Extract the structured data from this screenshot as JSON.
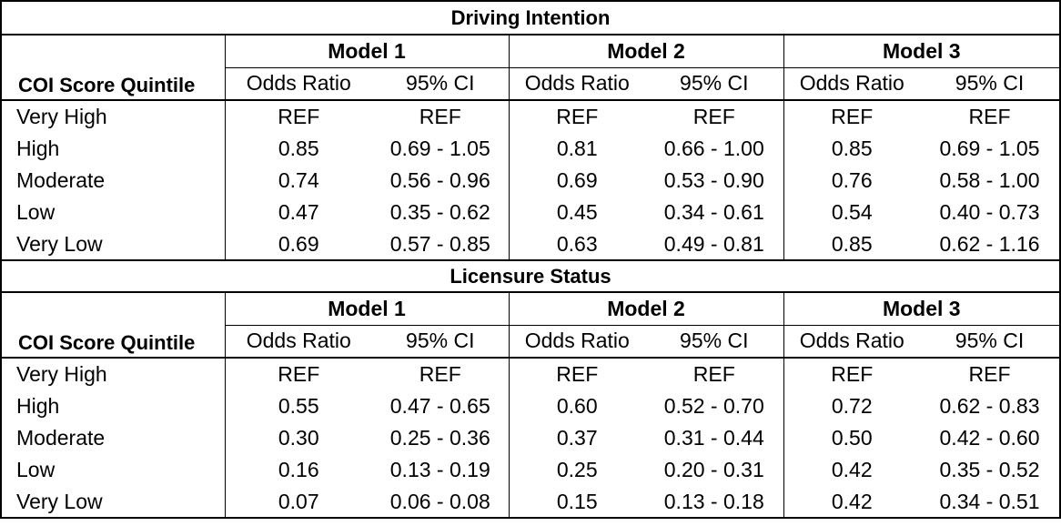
{
  "sections": [
    {
      "title": "Driving Intention",
      "models": [
        "Model 1",
        "Model 2",
        "Model 3"
      ],
      "row_header": "COI Score Quintile",
      "col_labels": [
        "Odds Ratio",
        "95% CI"
      ],
      "rows": [
        {
          "label": "Very High",
          "vals": [
            "REF",
            "REF",
            "REF",
            "REF",
            "REF",
            "REF"
          ]
        },
        {
          "label": "High",
          "vals": [
            "0.85",
            "0.69 - 1.05",
            "0.81",
            "0.66 - 1.00",
            "0.85",
            "0.69 - 1.05"
          ]
        },
        {
          "label": "Moderate",
          "vals": [
            "0.74",
            "0.56 - 0.96",
            "0.69",
            "0.53 - 0.90",
            "0.76",
            "0.58 - 1.00"
          ]
        },
        {
          "label": "Low",
          "vals": [
            "0.47",
            "0.35 - 0.62",
            "0.45",
            "0.34 - 0.61",
            "0.54",
            "0.40 - 0.73"
          ]
        },
        {
          "label": "Very Low",
          "vals": [
            "0.69",
            "0.57 - 0.85",
            "0.63",
            "0.49 - 0.81",
            "0.85",
            "0.62 - 1.16"
          ]
        }
      ]
    },
    {
      "title": "Licensure Status",
      "models": [
        "Model 1",
        "Model 2",
        "Model 3"
      ],
      "row_header": "COI Score Quintile",
      "col_labels": [
        "Odds Ratio",
        "95% CI"
      ],
      "rows": [
        {
          "label": "Very High",
          "vals": [
            "REF",
            "REF",
            "REF",
            "REF",
            "REF",
            "REF"
          ]
        },
        {
          "label": "High",
          "vals": [
            "0.55",
            "0.47 - 0.65",
            "0.60",
            "0.52 - 0.70",
            "0.72",
            "0.62 - 0.83"
          ]
        },
        {
          "label": "Moderate",
          "vals": [
            "0.30",
            "0.25 - 0.36",
            "0.37",
            "0.31 - 0.44",
            "0.50",
            "0.42 - 0.60"
          ]
        },
        {
          "label": "Low",
          "vals": [
            "0.16",
            "0.13 - 0.19",
            "0.25",
            "0.20 - 0.31",
            "0.42",
            "0.35 - 0.52"
          ]
        },
        {
          "label": "Very Low",
          "vals": [
            "0.07",
            "0.06 - 0.08",
            "0.15",
            "0.13 - 0.18",
            "0.42",
            "0.34 - 0.51"
          ]
        }
      ]
    }
  ]
}
